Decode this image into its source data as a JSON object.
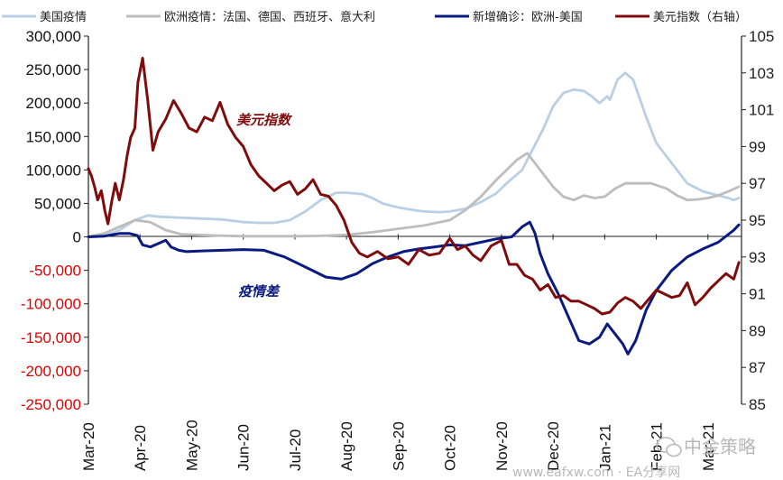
{
  "chart_data": {
    "type": "line",
    "legend": {
      "placement": "top",
      "entries": [
        {
          "label": "美国疫情",
          "color": "#b9cfe6"
        },
        {
          "label": "欧洲疫情：法国、德国、西班牙、意大利",
          "color": "#bdbdbd"
        },
        {
          "label": "新增确诊：欧洲-美国",
          "color": "#0a1a80"
        },
        {
          "label": "美元指数（右轴）",
          "color": "#7f0c0c"
        }
      ]
    },
    "x_ticks": [
      "Mar-20",
      "Apr-20",
      "May-20",
      "Jun-20",
      "Jul-20",
      "Aug-20",
      "Sep-20",
      "Oct-20",
      "Nov-20",
      "Dec-20",
      "Jan-21",
      "Feb-21",
      "Mar-21"
    ],
    "y_left": {
      "ticks": [
        "300,000",
        "250,000",
        "200,000",
        "150,000",
        "100,000",
        "50,000",
        "0",
        "-50,000",
        "-100,000",
        "-150,000",
        "-200,000",
        "-250,000"
      ],
      "tick_values": [
        300000,
        250000,
        200000,
        150000,
        100000,
        50000,
        0,
        -50000,
        -100000,
        -150000,
        -200000,
        -250000
      ],
      "range": [
        -250000,
        300000
      ]
    },
    "y_right": {
      "ticks": [
        "105",
        "103",
        "101",
        "99",
        "97",
        "95",
        "93",
        "91",
        "89",
        "87",
        "85"
      ],
      "tick_values": [
        105,
        103,
        101,
        99,
        97,
        95,
        93,
        91,
        89,
        87,
        85
      ],
      "range": [
        85,
        105
      ]
    },
    "grid": false,
    "x_range": [
      0,
      12.65
    ],
    "series": [
      {
        "name": "美国疫情",
        "axis": "left",
        "color": "#b9cfe6",
        "x": [
          0,
          0.3,
          0.6,
          0.9,
          1.15,
          1.4,
          1.7,
          2.0,
          2.3,
          2.6,
          3.0,
          3.3,
          3.6,
          3.9,
          4.2,
          4.5,
          4.8,
          5.0,
          5.3,
          5.5,
          5.7,
          6.0,
          6.3,
          6.5,
          6.8,
          7.0,
          7.3,
          7.6,
          7.9,
          8.1,
          8.4,
          8.6,
          8.8,
          9.0,
          9.2,
          9.4,
          9.6,
          9.75,
          9.9,
          10.05,
          10.1,
          10.25,
          10.4,
          10.55,
          10.8,
          11.0,
          11.3,
          11.6,
          11.9,
          12.2,
          12.4,
          12.5,
          12.6
        ],
        "y": [
          0,
          1000,
          10000,
          25000,
          32000,
          30000,
          29000,
          28000,
          27000,
          26000,
          22000,
          21000,
          21000,
          25000,
          38000,
          55000,
          66000,
          66000,
          64000,
          58000,
          50000,
          44000,
          40000,
          38000,
          37000,
          38000,
          42000,
          52000,
          65000,
          80000,
          100000,
          130000,
          160000,
          195000,
          215000,
          220000,
          218000,
          210000,
          200000,
          210000,
          205000,
          235000,
          245000,
          235000,
          180000,
          140000,
          110000,
          80000,
          68000,
          62000,
          58000,
          55000,
          58000
        ]
      },
      {
        "name": "欧洲疫情：法国、德国、西班牙、意大利",
        "axis": "left",
        "color": "#bdbdbd",
        "x": [
          0,
          0.3,
          0.6,
          0.9,
          1.2,
          1.5,
          1.8,
          2.1,
          2.5,
          3.0,
          3.5,
          4.0,
          4.5,
          5.0,
          5.5,
          6.0,
          6.5,
          7.0,
          7.3,
          7.6,
          7.9,
          8.1,
          8.3,
          8.5,
          8.65,
          8.8,
          9.0,
          9.2,
          9.4,
          9.6,
          9.8,
          10.0,
          10.2,
          10.4,
          10.6,
          10.9,
          11.2,
          11.4,
          11.6,
          11.8,
          12.0,
          12.2,
          12.4,
          12.6
        ],
        "y": [
          0,
          5000,
          15000,
          25000,
          22000,
          10000,
          4000,
          3000,
          2000,
          1000,
          1000,
          1000,
          1500,
          3000,
          7000,
          12000,
          17000,
          25000,
          40000,
          60000,
          85000,
          100000,
          115000,
          125000,
          110000,
          95000,
          75000,
          60000,
          55000,
          62000,
          58000,
          60000,
          72000,
          80000,
          80000,
          80000,
          72000,
          62000,
          55000,
          56000,
          58000,
          62000,
          68000,
          75000
        ]
      },
      {
        "name": "新增确诊：欧洲-美国",
        "axis": "left",
        "color": "#0a1a80",
        "x": [
          0,
          0.3,
          0.6,
          0.8,
          0.95,
          1.05,
          1.2,
          1.35,
          1.5,
          1.6,
          1.75,
          1.9,
          2.2,
          2.6,
          3.0,
          3.4,
          3.8,
          4.2,
          4.6,
          4.9,
          5.2,
          5.5,
          5.8,
          6.1,
          6.4,
          6.7,
          7.0,
          7.3,
          7.6,
          7.9,
          8.2,
          8.4,
          8.55,
          8.65,
          8.75,
          8.9,
          9.1,
          9.3,
          9.5,
          9.7,
          9.9,
          10.05,
          10.2,
          10.35,
          10.45,
          10.6,
          10.8,
          11.0,
          11.3,
          11.6,
          11.9,
          12.2,
          12.5,
          12.6
        ],
        "y": [
          0,
          1000,
          5000,
          5000,
          2000,
          -12000,
          -15000,
          -10000,
          -5000,
          -15000,
          -20000,
          -22000,
          -21000,
          -20000,
          -19000,
          -20000,
          -30000,
          -45000,
          -60000,
          -63000,
          -55000,
          -40000,
          -30000,
          -22000,
          -18000,
          -15000,
          -12000,
          -13000,
          -8000,
          -3000,
          0,
          15000,
          22000,
          5000,
          -25000,
          -55000,
          -85000,
          -120000,
          -155000,
          -160000,
          -150000,
          -130000,
          -145000,
          -160000,
          -175000,
          -155000,
          -110000,
          -80000,
          -50000,
          -30000,
          -18000,
          -8000,
          10000,
          18000
        ]
      },
      {
        "name": "美元指数（右轴）",
        "axis": "right",
        "color": "#7f0c0c",
        "x": [
          0,
          0.06,
          0.12,
          0.18,
          0.25,
          0.32,
          0.38,
          0.45,
          0.52,
          0.6,
          0.68,
          0.75,
          0.82,
          0.9,
          0.96,
          1.05,
          1.15,
          1.25,
          1.35,
          1.5,
          1.65,
          1.8,
          1.95,
          2.1,
          2.25,
          2.4,
          2.55,
          2.7,
          2.85,
          3.0,
          3.15,
          3.3,
          3.45,
          3.6,
          3.75,
          3.9,
          4.05,
          4.2,
          4.35,
          4.5,
          4.65,
          4.8,
          4.95,
          5.1,
          5.25,
          5.4,
          5.6,
          5.8,
          6.0,
          6.2,
          6.4,
          6.6,
          6.8,
          7.0,
          7.15,
          7.3,
          7.45,
          7.6,
          7.8,
          8.0,
          8.15,
          8.3,
          8.45,
          8.6,
          8.75,
          8.9,
          9.05,
          9.2,
          9.35,
          9.5,
          9.65,
          9.8,
          9.95,
          10.1,
          10.25,
          10.4,
          10.55,
          10.7,
          10.85,
          11.0,
          11.15,
          11.3,
          11.45,
          11.6,
          11.75,
          11.9,
          12.05,
          12.2,
          12.35,
          12.5,
          12.6
        ],
        "y": [
          97.8,
          97.4,
          96.8,
          96.1,
          96.6,
          95.5,
          94.8,
          96.0,
          97.0,
          96.1,
          97.2,
          98.5,
          99.5,
          100.0,
          102.5,
          103.8,
          101.5,
          98.8,
          99.8,
          100.5,
          101.5,
          100.8,
          100.0,
          99.8,
          100.6,
          100.4,
          101.4,
          100.2,
          99.5,
          99.0,
          98.0,
          97.4,
          97.0,
          96.6,
          96.9,
          97.1,
          96.4,
          96.7,
          97.2,
          96.4,
          96.3,
          95.8,
          95.0,
          93.8,
          93.2,
          93.0,
          93.3,
          92.9,
          93.0,
          92.6,
          93.4,
          93.1,
          93.2,
          94.0,
          93.4,
          93.6,
          93.1,
          92.8,
          93.6,
          93.9,
          92.6,
          92.6,
          92.0,
          91.8,
          91.2,
          91.5,
          90.8,
          90.9,
          90.6,
          90.6,
          90.4,
          90.2,
          89.9,
          90.0,
          90.5,
          90.8,
          90.6,
          90.2,
          90.7,
          91.2,
          91.0,
          90.8,
          90.9,
          91.6,
          90.4,
          90.8,
          91.3,
          91.7,
          92.1,
          91.8,
          92.7
        ]
      }
    ],
    "annotations": [
      {
        "text": "美元指数",
        "color": "#7f0c0c"
      },
      {
        "text": "疫情差",
        "color": "#0a1a80"
      }
    ]
  },
  "watermark": {
    "brand": "中金策略",
    "site": "www.eafxw.com · EA分享网"
  }
}
